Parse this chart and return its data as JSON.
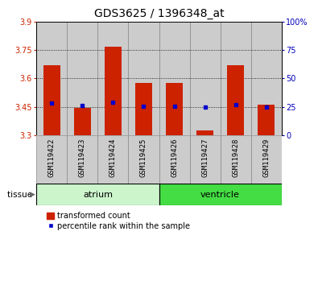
{
  "title": "GDS3625 / 1396348_at",
  "samples": [
    "GSM119422",
    "GSM119423",
    "GSM119424",
    "GSM119425",
    "GSM119426",
    "GSM119427",
    "GSM119428",
    "GSM119429"
  ],
  "red_bar_top": [
    3.67,
    3.443,
    3.765,
    3.575,
    3.575,
    3.325,
    3.67,
    3.46
  ],
  "blue_sq_y": [
    3.47,
    3.457,
    3.473,
    3.453,
    3.453,
    3.447,
    3.463,
    3.45
  ],
  "y_min": 3.3,
  "y_max": 3.9,
  "y_ticks_left": [
    3.3,
    3.45,
    3.6,
    3.75,
    3.9
  ],
  "y_ticks_right": [
    0,
    25,
    50,
    75,
    100
  ],
  "y_labels_right": [
    "0",
    "25",
    "50",
    "75",
    "100%"
  ],
  "bar_color": "#cc2200",
  "sq_color": "#0000cc",
  "bar_width": 0.55,
  "left_tick_color": "#cc2200",
  "right_tick_color": "#0000bb",
  "sample_bg_color": "#cccccc",
  "atrium_color": "#ccf5cc",
  "ventricle_color": "#44dd44",
  "title_fontsize": 10,
  "tick_fontsize": 7,
  "sample_fontsize": 6.5,
  "group_fontsize": 8,
  "legend_fontsize": 7,
  "tissue_fontsize": 7.5
}
